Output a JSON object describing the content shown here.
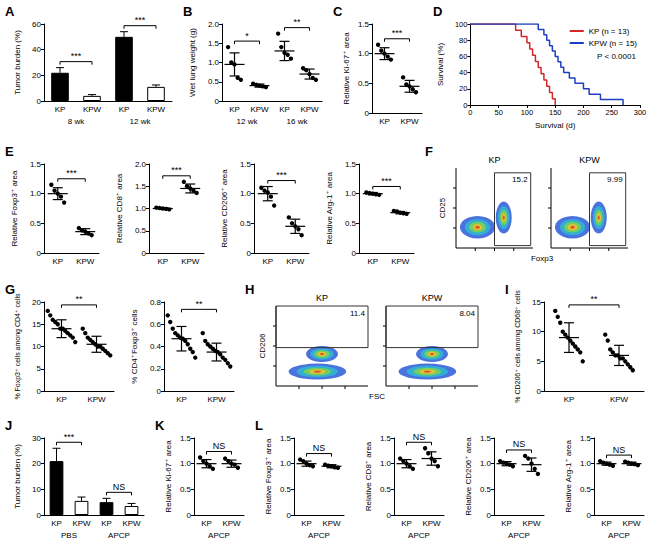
{
  "chart_data": [
    {
      "type": "bar",
      "title": "A",
      "ylabel": "Tumor burden (%)",
      "categories": [
        "KP",
        "KPW",
        "KP",
        "KPW"
      ],
      "group_labels": [
        "8 wk",
        "12 wk"
      ],
      "values": [
        22,
        4,
        50,
        11
      ],
      "errors": [
        4,
        1,
        4,
        1.5
      ],
      "colors": [
        "#000000",
        "#ffffff",
        "#000000",
        "#ffffff"
      ],
      "ylim": [
        0,
        60
      ],
      "yticks": [
        0,
        20,
        40,
        60
      ],
      "annotations": [
        {
          "text": "***",
          "from": 0,
          "to": 1
        },
        {
          "text": "***",
          "from": 2,
          "to": 3
        }
      ]
    },
    {
      "type": "dot",
      "title": "B",
      "ylabel": "Wet lung weight (g)",
      "categories": [
        "KP",
        "KPW",
        "KP",
        "KPW"
      ],
      "group_labels": [
        "12 wk",
        "16 wk"
      ],
      "points": [
        [
          1.4,
          1.0,
          0.95,
          0.6,
          0.55
        ],
        [
          0.45,
          0.42,
          0.4,
          0.38,
          0.36
        ],
        [
          1.75,
          1.4,
          1.25,
          1.2,
          1.1
        ],
        [
          0.85,
          0.8,
          0.7,
          0.6,
          0.55
        ]
      ],
      "values": [
        0.95,
        0.4,
        1.3,
        0.7
      ],
      "errors": [
        0.3,
        0.04,
        0.25,
        0.13
      ],
      "color": "#000000",
      "ylim": [
        0,
        2
      ],
      "yticks": [
        0,
        0.5,
        {
          "value": 1,
          "label": "1.0"
        },
        1.5,
        {
          "value": 2,
          "label": "2.0"
        }
      ],
      "annotations": [
        {
          "text": "*",
          "from": 0,
          "to": 1
        },
        {
          "text": "**",
          "from": 2,
          "to": 3
        }
      ]
    },
    {
      "type": "dot",
      "title": "C",
      "ylabel": "Relative Ki-67⁺ area",
      "categories": [
        "KP",
        "KPW"
      ],
      "points": [
        [
          1.15,
          1.05,
          1.0,
          0.95,
          0.9
        ],
        [
          0.6,
          0.48,
          0.45,
          0.4,
          0.35
        ]
      ],
      "values": [
        1.0,
        0.45
      ],
      "errors": [
        0.1,
        0.1
      ],
      "color": "#000000",
      "ylim": [
        0,
        1.5
      ],
      "yticks": [
        0,
        0.5,
        {
          "value": 1,
          "label": "1.0"
        },
        1.5
      ],
      "annotations": [
        {
          "text": "***",
          "from": 0,
          "to": 1
        }
      ]
    },
    {
      "type": "line",
      "title": "D",
      "xlabel": "Survival (d)",
      "ylabel": "Survival (%)",
      "line_style": "step",
      "legend": "upper right",
      "annotation": "P < 0.0001",
      "xlim": [
        0,
        300
      ],
      "xticks": [
        0,
        50,
        100,
        150,
        200,
        250,
        300
      ],
      "ylim": [
        0,
        100
      ],
      "yticks": [
        0,
        20,
        40,
        60,
        80,
        100
      ],
      "series": [
        {
          "name": "KP (n = 13)",
          "color": "#d62728",
          "x": [
            0,
            80,
            90,
            100,
            105,
            110,
            115,
            120,
            125,
            130,
            135,
            140,
            145,
            150
          ],
          "values": [
            100,
            92.3,
            84.6,
            76.9,
            69.2,
            61.5,
            53.8,
            46.2,
            38.5,
            30.8,
            23.1,
            15.4,
            7.7,
            0
          ]
        },
        {
          "name": "KPW (n = 15)",
          "color": "#1f3fbf",
          "x": [
            0,
            120,
            130,
            135,
            140,
            145,
            150,
            155,
            160,
            165,
            175,
            185,
            200,
            210,
            230,
            270
          ],
          "values": [
            100,
            93.3,
            86.7,
            80,
            73.3,
            66.7,
            60,
            53.3,
            46.7,
            40,
            33.3,
            26.7,
            20,
            13.3,
            6.7,
            0
          ]
        }
      ]
    },
    {
      "type": "dot",
      "title": "E",
      "ylabel": "Relative Foxp3⁺ area",
      "categories": [
        "KP",
        "KPW"
      ],
      "points": [
        [
          1.15,
          1.05,
          1.0,
          0.95,
          0.85
        ],
        [
          0.42,
          0.38,
          0.36,
          0.33,
          0.3
        ]
      ],
      "values": [
        1.0,
        0.36
      ],
      "errors": [
        0.1,
        0.05
      ],
      "color": "#000000",
      "ylim": [
        0,
        1.5
      ],
      "yticks": [
        0,
        0.5,
        {
          "value": 1,
          "label": "1.0"
        },
        1.5
      ],
      "annotations": [
        {
          "text": "***",
          "from": 0,
          "to": 1
        }
      ]
    },
    {
      "type": "dot",
      "ylabel": "Relative CD8⁺ area",
      "categories": [
        "KP",
        "KPW"
      ],
      "points": [
        [
          1.02,
          1.01,
          1.0,
          0.99,
          0.98
        ],
        [
          1.6,
          1.5,
          1.45,
          1.4,
          1.35
        ]
      ],
      "values": [
        1.0,
        1.45
      ],
      "errors": [
        0.02,
        0.1
      ],
      "color": "#000000",
      "ylim": [
        0,
        2
      ],
      "yticks": [
        0,
        0.5,
        {
          "value": 1,
          "label": "1.0"
        },
        1.5,
        {
          "value": 2,
          "label": "2.0"
        }
      ],
      "annotations": [
        {
          "text": "***",
          "from": 0,
          "to": 1
        }
      ]
    },
    {
      "type": "dot",
      "ylabel": "Relative CD206⁺ area",
      "categories": [
        "KP",
        "KPW"
      ],
      "points": [
        [
          1.1,
          1.05,
          1.02,
          0.95,
          0.8
        ],
        [
          0.6,
          0.5,
          0.45,
          0.4,
          0.3
        ]
      ],
      "values": [
        1.0,
        0.45
      ],
      "errors": [
        0.12,
        0.12
      ],
      "color": "#000000",
      "ylim": [
        0,
        1.5
      ],
      "yticks": [
        0,
        0.5,
        {
          "value": 1,
          "label": "1.0"
        },
        1.5
      ],
      "annotations": [
        {
          "text": "***",
          "from": 0,
          "to": 1
        }
      ]
    },
    {
      "type": "dot",
      "ylabel": "Relative Arg-1⁺ area",
      "categories": [
        "KP",
        "KPW"
      ],
      "points": [
        [
          1.02,
          1.01,
          1.0,
          0.99,
          0.98
        ],
        [
          0.71,
          0.7,
          0.68,
          0.67,
          0.66
        ]
      ],
      "values": [
        1.0,
        0.68
      ],
      "errors": [
        0.02,
        0.02
      ],
      "color": "#000000",
      "ylim": [
        0,
        1.5
      ],
      "yticks": [
        0,
        0.5,
        {
          "value": 1,
          "label": "1.0"
        },
        1.5
      ],
      "annotations": [
        {
          "text": "***",
          "from": 0,
          "to": 1
        }
      ]
    },
    {
      "type": "flow",
      "title": "F",
      "xlabel": "Foxp3",
      "ylabel": "CD25",
      "tick_labels": false,
      "panels": [
        {
          "name": "KP",
          "gate": 15.2
        },
        {
          "name": "KPW",
          "gate": 9.99
        }
      ]
    },
    {
      "type": "dot",
      "title": "G",
      "ylabel": "% Foxp3⁺ cells among CD4⁺ cells",
      "categories": [
        "KP",
        "KPW"
      ],
      "points": [
        [
          18,
          17,
          16,
          15.5,
          15,
          14,
          14,
          13.5,
          13,
          12.5,
          12,
          11
        ],
        [
          14,
          13,
          12,
          11.5,
          11,
          10.5,
          10,
          10,
          9.5,
          9,
          8.5,
          8
        ]
      ],
      "values": [
        14,
        10.5
      ],
      "errors": [
        2,
        1.8
      ],
      "color": "#000000",
      "ylim": [
        0,
        20
      ],
      "yticks": [
        0,
        5,
        10,
        15,
        20
      ],
      "annotations": [
        {
          "text": "**",
          "from": 0,
          "to": 1
        }
      ]
    },
    {
      "type": "dot",
      "ylabel": "% CD4⁺Foxp3⁺ cells",
      "categories": [
        "KP",
        "KPW"
      ],
      "points": [
        [
          0.68,
          0.62,
          0.56,
          0.52,
          0.5,
          0.48,
          0.47,
          0.45,
          0.42,
          0.38,
          0.35,
          0.3
        ],
        [
          0.52,
          0.45,
          0.42,
          0.4,
          0.38,
          0.36,
          0.35,
          0.33,
          0.3,
          0.28,
          0.25,
          0.22
        ]
      ],
      "values": [
        0.47,
        0.35
      ],
      "errors": [
        0.11,
        0.08
      ],
      "color": "#000000",
      "ylim": [
        0,
        0.8
      ],
      "yticks": [
        0,
        0.2,
        0.4,
        0.6,
        0.8
      ],
      "annotations": [
        {
          "text": "**",
          "from": 0,
          "to": 1
        }
      ]
    },
    {
      "type": "flow",
      "title": "H",
      "xlabel": "FSC",
      "ylabel": "CD206",
      "tick_labels": false,
      "panels": [
        {
          "name": "KP",
          "gate": 11.4
        },
        {
          "name": "KPW",
          "gate": 8.04
        }
      ]
    },
    {
      "type": "dot",
      "title": "I",
      "ylabel": "% CD206⁺ cells among CD68⁺ cells",
      "categories": [
        "KP",
        "KPW"
      ],
      "points": [
        [
          13.5,
          12.5,
          11.5,
          10,
          9.5,
          9,
          8.5,
          8,
          7.5,
          7,
          6.5,
          5
        ],
        [
          9.5,
          8.5,
          7,
          6.5,
          6,
          6,
          5.5,
          5.5,
          5,
          4.5,
          4,
          3.5
        ]
      ],
      "values": [
        9,
        6
      ],
      "errors": [
        2.5,
        1.7
      ],
      "color": "#000000",
      "ylim": [
        0,
        15
      ],
      "yticks": [
        0,
        5,
        10,
        15
      ],
      "annotations": [
        {
          "text": "**",
          "from": 0,
          "to": 1
        }
      ]
    },
    {
      "type": "bar",
      "title": "J",
      "ylabel": "Tumor burden (%)",
      "categories": [
        "KP",
        "KPW",
        "KP",
        "KPW"
      ],
      "group_labels": [
        "PBS",
        "APCP"
      ],
      "values": [
        21,
        5.5,
        5,
        3.5
      ],
      "errors": [
        5,
        1.5,
        1.5,
        1
      ],
      "colors": [
        "#000000",
        "#ffffff",
        "#000000",
        "#ffffff"
      ],
      "ylim": [
        0,
        30
      ],
      "yticks": [
        0,
        10,
        20,
        30
      ],
      "annotations": [
        {
          "text": "***",
          "from": 0,
          "to": 1
        },
        {
          "text": "NS",
          "from": 2,
          "to": 3
        }
      ]
    },
    {
      "type": "dot",
      "title": "K",
      "ylabel": "Relative Ki-67⁺ area",
      "categories": [
        "KP",
        "KPW"
      ],
      "group_labels": [
        "APCP"
      ],
      "points": [
        [
          1.12,
          1.05,
          1.0,
          0.95,
          0.9
        ],
        [
          1.1,
          1.05,
          1.0,
          0.98,
          0.92
        ]
      ],
      "values": [
        1.0,
        1.0
      ],
      "errors": [
        0.08,
        0.07
      ],
      "color": "#000000",
      "ylim": [
        0,
        1.5
      ],
      "yticks": [
        0,
        0.5,
        {
          "value": 1,
          "label": "1.0"
        },
        1.5
      ],
      "annotations": [
        {
          "text": "NS",
          "from": 0,
          "to": 1
        }
      ]
    },
    {
      "type": "dot",
      "title": "L",
      "ylabel": "Relative Foxp3⁺ area",
      "categories": [
        "KP",
        "KPW"
      ],
      "group_labels": [
        "APCP"
      ],
      "points": [
        [
          1.08,
          1.05,
          1.0,
          0.97,
          0.95
        ],
        [
          0.98,
          0.96,
          0.95,
          0.93,
          0.92
        ]
      ],
      "values": [
        1.0,
        0.95
      ],
      "errors": [
        0.05,
        0.03
      ],
      "color": "#000000",
      "ylim": [
        0,
        1.5
      ],
      "yticks": [
        0,
        0.5,
        {
          "value": 1,
          "label": "1.0"
        },
        1.5
      ],
      "annotations": [
        {
          "text": "NS",
          "from": 0,
          "to": 1
        }
      ]
    },
    {
      "type": "dot",
      "ylabel": "Relative CD8⁺ area",
      "categories": [
        "KP",
        "KPW"
      ],
      "group_labels": [
        "APCP"
      ],
      "points": [
        [
          1.1,
          1.05,
          1.0,
          0.95,
          0.9
        ],
        [
          1.3,
          1.2,
          1.1,
          1.05,
          0.95
        ]
      ],
      "values": [
        1.0,
        1.1
      ],
      "errors": [
        0.08,
        0.13
      ],
      "color": "#000000",
      "ylim": [
        0,
        1.5
      ],
      "yticks": [
        0,
        0.5,
        {
          "value": 1,
          "label": "1.0"
        },
        1.5
      ],
      "annotations": [
        {
          "text": "NS",
          "from": 0,
          "to": 1
        }
      ]
    },
    {
      "type": "dot",
      "ylabel": "Relative CD206⁺ area",
      "categories": [
        "KP",
        "KPW"
      ],
      "group_labels": [
        "APCP"
      ],
      "points": [
        [
          1.05,
          1.02,
          1.0,
          0.98,
          0.95
        ],
        [
          1.15,
          1.1,
          1.0,
          0.9,
          0.8
        ]
      ],
      "values": [
        1.0,
        0.98
      ],
      "errors": [
        0.04,
        0.13
      ],
      "color": "#000000",
      "ylim": [
        0,
        1.5
      ],
      "yticks": [
        0,
        0.5,
        {
          "value": 1,
          "label": "1.0"
        },
        1.5
      ],
      "annotations": [
        {
          "text": "NS",
          "from": 0,
          "to": 1
        }
      ]
    },
    {
      "type": "dot",
      "ylabel": "Relative Arg-1⁺ area",
      "categories": [
        "KP",
        "KPW"
      ],
      "group_labels": [
        "APCP"
      ],
      "points": [
        [
          1.05,
          1.02,
          1.0,
          0.98,
          0.96
        ],
        [
          1.04,
          1.02,
          1.0,
          0.99,
          0.97
        ]
      ],
      "values": [
        1.0,
        1.0
      ],
      "errors": [
        0.03,
        0.03
      ],
      "color": "#000000",
      "ylim": [
        0,
        1.5
      ],
      "yticks": [
        0,
        0.5,
        {
          "value": 1,
          "label": "1.0"
        },
        1.5
      ],
      "annotations": [
        {
          "text": "NS",
          "from": 0,
          "to": 1
        }
      ]
    }
  ]
}
